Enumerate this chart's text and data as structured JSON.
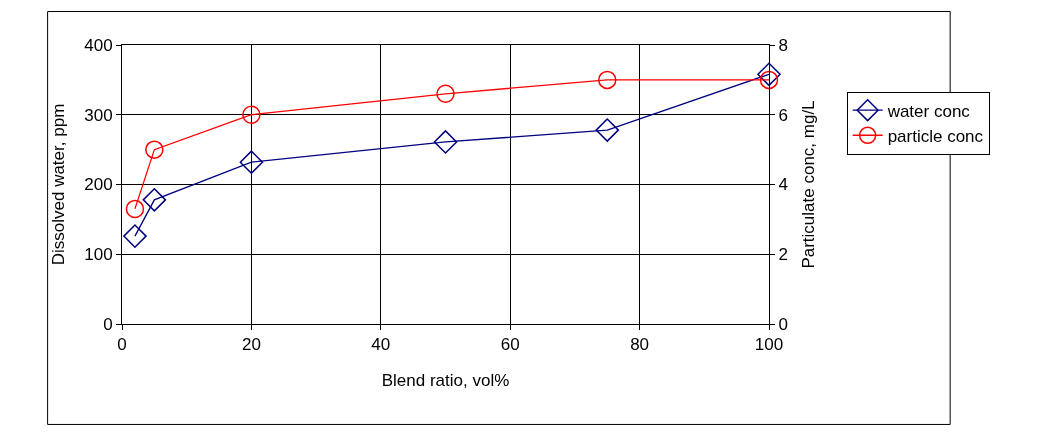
{
  "chart_data": {
    "type": "line",
    "xlabel": "Blend ratio, vol%",
    "ylabel": "Dissolved water, ppm",
    "y2label": "Particulate conc, mg/L",
    "xlim": [
      0,
      100
    ],
    "xticks": [
      0,
      20,
      40,
      60,
      80,
      100
    ],
    "ylim": [
      0,
      400
    ],
    "yticks": [
      0,
      100,
      200,
      300,
      400
    ],
    "y2lim": [
      0,
      8
    ],
    "y2ticks": [
      0,
      2,
      4,
      6,
      8
    ],
    "grid": true,
    "legend": "right",
    "line_style": "solid",
    "series": [
      {
        "name": "water conc",
        "color": "#000080",
        "marker": "diamond",
        "x": [
          2,
          5,
          20,
          50,
          75,
          100
        ],
        "values": [
          126,
          178,
          232,
          261,
          278,
          358
        ]
      },
      {
        "name": "particle conc",
        "color": "#ff0000",
        "marker": "circle",
        "axis": "y2",
        "x": [
          2,
          5,
          20,
          50,
          75,
          100
        ],
        "values": [
          3.3,
          5.0,
          6.0,
          6.6,
          7.0,
          7.0
        ]
      }
    ]
  }
}
